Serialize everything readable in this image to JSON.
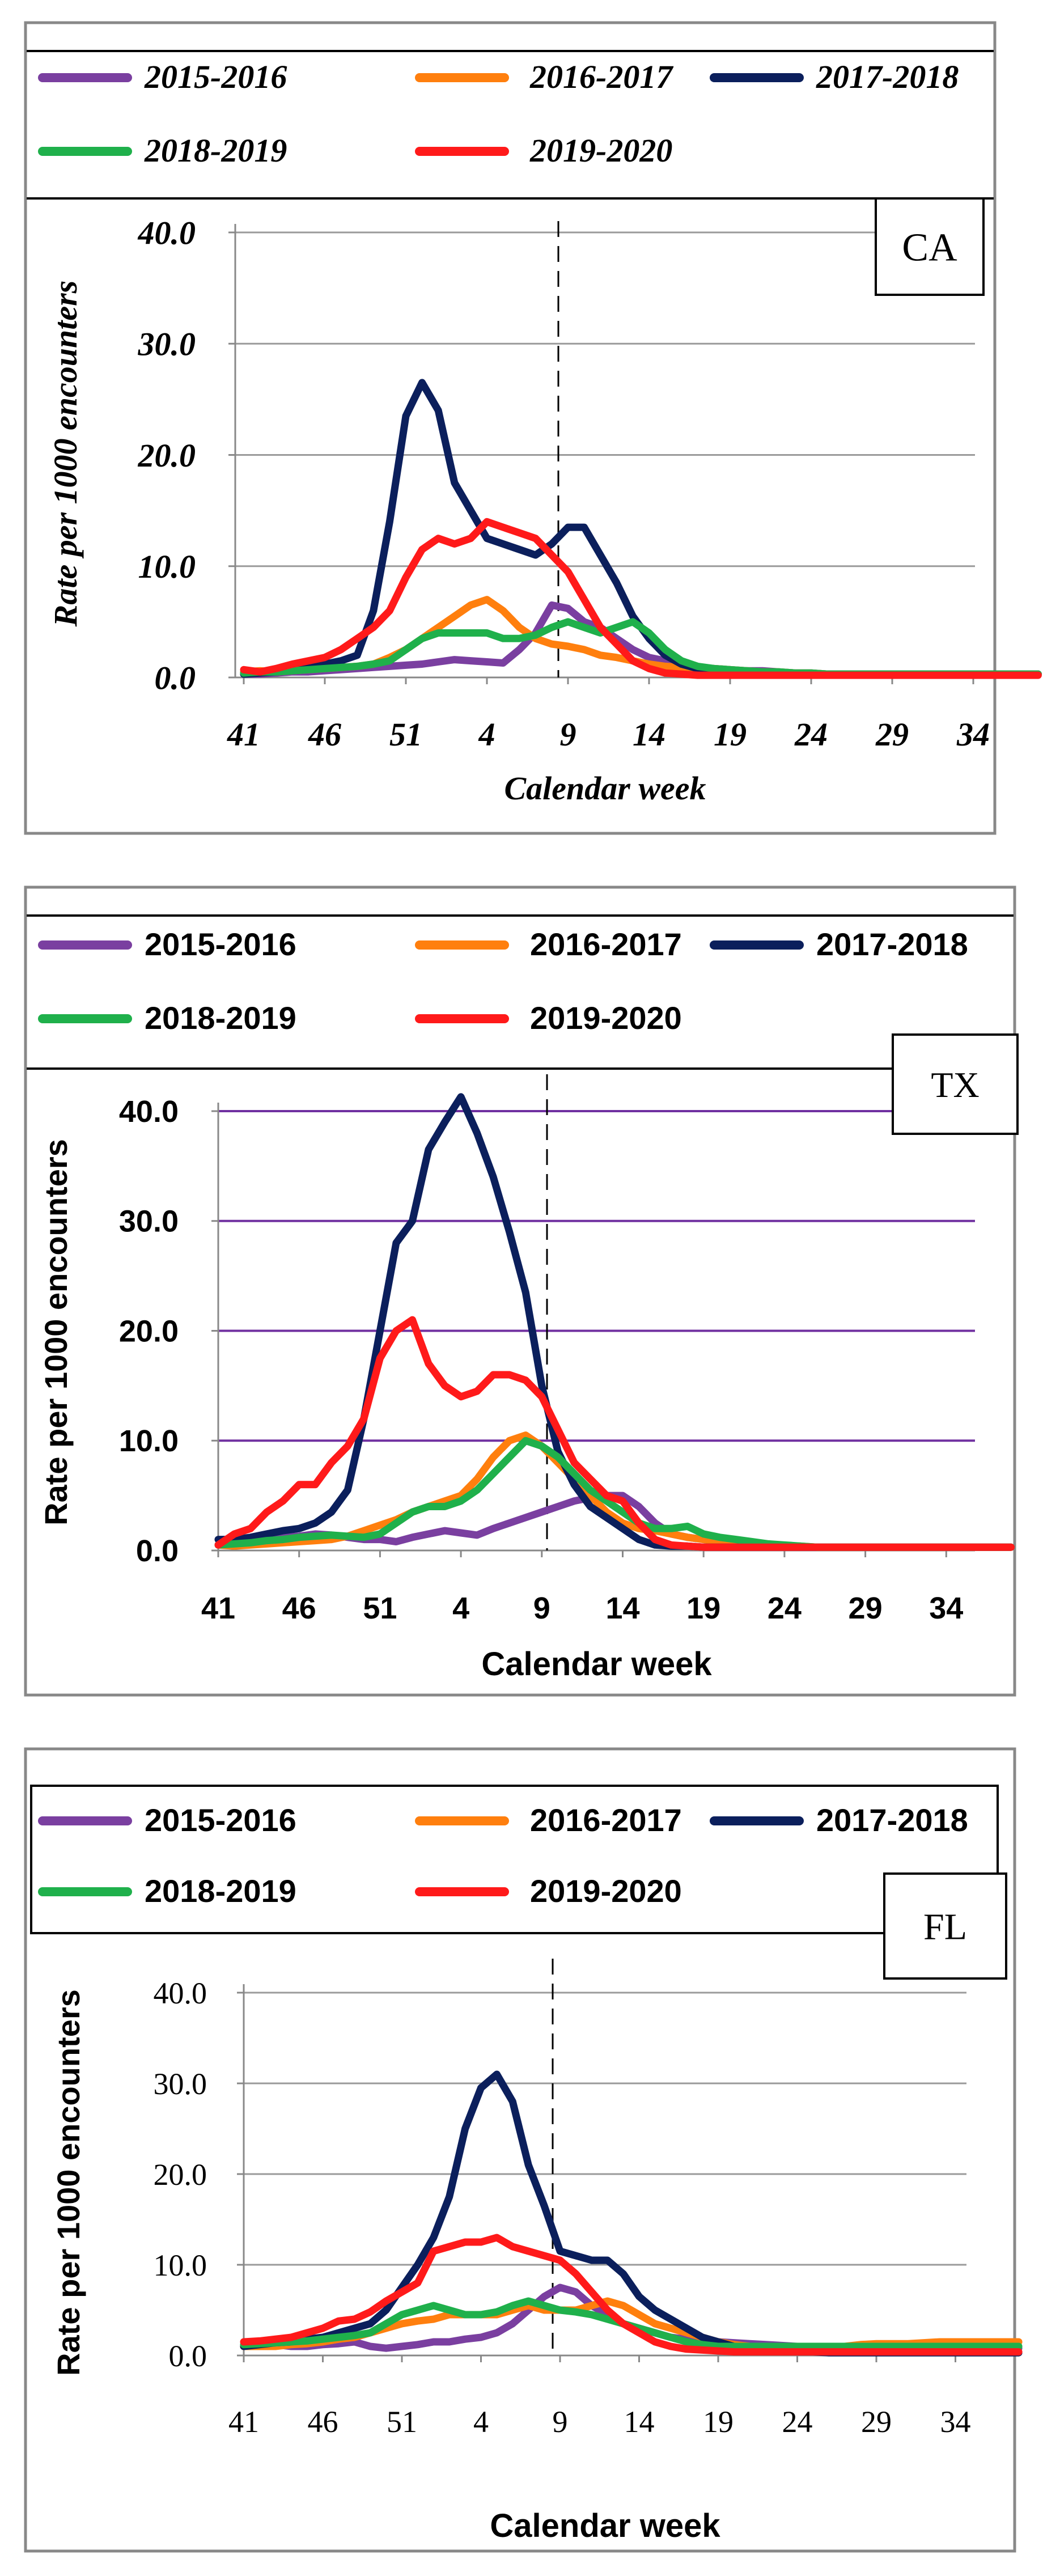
{
  "colors": {
    "2015-2016": "#7A3FA0",
    "2016-2017": "#FF7F0E",
    "2017-2018": "#0B1F5C",
    "2018-2019": "#1FB04B",
    "2019-2020": "#FF1A1A",
    "grid_tx": "#7030A0",
    "grid": "#9a9a9a"
  },
  "chart_data": [
    {
      "type": "line",
      "state": "CA",
      "xlabel": "Calendar week",
      "ylabel": "Rate per 1000 encounters",
      "x_tick_labels": [
        "41",
        "46",
        "51",
        "4",
        "9",
        "14",
        "19",
        "24",
        "29",
        "34"
      ],
      "y_tick_labels": [
        "0.0",
        "10.0",
        "20.0",
        "30.0",
        "40.0"
      ],
      "ylim": [
        0,
        40
      ],
      "legend": [
        "2015-2016",
        "2016-2017",
        "2017-2018",
        "2018-2019",
        "2019-2020"
      ],
      "reference_line_index": 22,
      "series": [
        {
          "name": "2015-2016",
          "values": [
            0.3,
            0.3,
            0.4,
            0.5,
            0.5,
            0.6,
            0.7,
            0.8,
            0.9,
            1.0,
            1.1,
            1.2,
            1.4,
            1.6,
            1.5,
            1.4,
            1.3,
            2.5,
            4.0,
            6.5,
            6.2,
            5.0,
            4.5,
            3.5,
            2.5,
            1.8,
            1.5,
            1.0,
            0.9,
            0.8,
            0.7,
            0.6,
            0.6,
            0.5,
            0.4,
            0.4,
            0.3,
            0.3,
            0.3,
            0.3,
            0.3,
            0.3,
            0.3,
            0.3,
            0.3,
            0.3,
            0.3,
            0.3,
            0.3,
            0.3
          ]
        },
        {
          "name": "2016-2017",
          "values": [
            0.5,
            0.6,
            0.5,
            0.6,
            0.7,
            0.8,
            0.9,
            1.0,
            1.2,
            1.8,
            2.5,
            3.5,
            4.5,
            5.5,
            6.5,
            7.0,
            6.0,
            4.5,
            3.5,
            3.0,
            2.8,
            2.5,
            2.0,
            1.8,
            1.5,
            1.2,
            1.0,
            0.9,
            0.8,
            0.8,
            0.7,
            0.6,
            0.5,
            0.5,
            0.4,
            0.4,
            0.3,
            0.3,
            0.3,
            0.3,
            0.3,
            0.3,
            0.3,
            0.3,
            0.3,
            0.3,
            0.3,
            0.3,
            0.3,
            0.3
          ]
        },
        {
          "name": "2017-2018",
          "values": [
            0.3,
            0.4,
            0.5,
            0.7,
            1.0,
            1.2,
            1.5,
            2.0,
            6.0,
            14.0,
            23.5,
            26.5,
            24.0,
            17.5,
            15.0,
            12.5,
            12.0,
            11.5,
            11.0,
            12.0,
            13.5,
            13.5,
            11.0,
            8.5,
            5.5,
            3.5,
            2.0,
            1.2,
            0.8,
            0.6,
            0.5,
            0.4,
            0.4,
            0.3,
            0.3,
            0.3,
            0.3,
            0.3,
            0.3,
            0.3,
            0.3,
            0.3,
            0.3,
            0.3,
            0.3,
            0.3,
            0.3,
            0.3,
            0.3,
            0.3
          ]
        },
        {
          "name": "2018-2019",
          "values": [
            0.4,
            0.5,
            0.5,
            0.6,
            0.7,
            0.8,
            0.9,
            1.0,
            1.2,
            1.5,
            2.5,
            3.5,
            4.0,
            4.0,
            4.0,
            4.0,
            3.5,
            3.5,
            3.8,
            4.5,
            5.0,
            4.5,
            4.0,
            4.5,
            5.0,
            4.0,
            2.5,
            1.5,
            1.0,
            0.8,
            0.7,
            0.6,
            0.5,
            0.5,
            0.4,
            0.4,
            0.3,
            0.3,
            0.3,
            0.3,
            0.3,
            0.3,
            0.3,
            0.3,
            0.3,
            0.3,
            0.3,
            0.3,
            0.3,
            0.3
          ]
        },
        {
          "name": "2019-2020",
          "values": [
            0.7,
            0.5,
            0.8,
            1.2,
            1.5,
            1.8,
            2.5,
            3.5,
            4.5,
            6.0,
            9.0,
            11.5,
            12.5,
            12.0,
            12.5,
            14.0,
            13.5,
            13.0,
            12.5,
            11.0,
            9.5,
            7.0,
            4.5,
            3.0,
            1.5,
            0.8,
            0.4,
            0.3,
            0.2,
            0.2,
            0.2,
            0.2,
            0.2,
            0.2,
            0.2,
            0.2,
            0.2,
            0.2,
            0.2,
            0.2,
            0.2,
            0.2,
            0.2,
            0.2,
            0.2,
            0.2,
            0.2,
            0.2,
            0.2,
            0.2
          ]
        }
      ]
    },
    {
      "type": "line",
      "state": "TX",
      "xlabel": "Calendar week",
      "ylabel": "Rate per 1000 encounters",
      "x_tick_labels": [
        "41",
        "46",
        "51",
        "4",
        "9",
        "14",
        "19",
        "24",
        "29",
        "34"
      ],
      "y_tick_labels": [
        "0.0",
        "10.0",
        "20.0",
        "30.0",
        "40.0"
      ],
      "ylim": [
        0,
        40
      ],
      "legend": [
        "2015-2016",
        "2016-2017",
        "2017-2018",
        "2018-2019",
        "2019-2020"
      ],
      "reference_line_index": 22,
      "series": [
        {
          "name": "2015-2016",
          "values": [
            0.5,
            0.6,
            0.8,
            1.0,
            1.2,
            1.3,
            1.5,
            1.4,
            1.2,
            1.0,
            1.0,
            0.8,
            1.2,
            1.5,
            1.8,
            1.6,
            1.4,
            2.0,
            2.5,
            3.0,
            3.5,
            4.0,
            4.5,
            4.8,
            5.0,
            5.0,
            4.0,
            2.5,
            1.5,
            1.2,
            1.0,
            0.8,
            0.7,
            0.6,
            0.5,
            0.4,
            0.3,
            0.3,
            0.3,
            0.3,
            0.3,
            0.3,
            0.3,
            0.3,
            0.3,
            0.3,
            0.3,
            0.3,
            0.3,
            0.3
          ]
        },
        {
          "name": "2016-2017",
          "values": [
            0.5,
            0.4,
            0.5,
            0.6,
            0.7,
            0.8,
            0.9,
            1.0,
            1.3,
            1.8,
            2.3,
            2.8,
            3.5,
            4.0,
            4.5,
            5.0,
            6.5,
            8.5,
            10.0,
            10.5,
            9.5,
            8.0,
            6.5,
            5.0,
            3.5,
            2.5,
            2.0,
            1.8,
            1.5,
            1.2,
            1.0,
            0.8,
            0.7,
            0.6,
            0.5,
            0.4,
            0.4,
            0.3,
            0.3,
            0.3,
            0.3,
            0.3,
            0.3,
            0.3,
            0.3,
            0.3,
            0.3,
            0.3,
            0.3,
            0.3
          ]
        },
        {
          "name": "2017-2018",
          "values": [
            1.0,
            1.0,
            1.2,
            1.5,
            1.8,
            2.0,
            2.5,
            3.5,
            5.5,
            12.0,
            20.0,
            28.0,
            30.0,
            36.5,
            39.0,
            41.3,
            38.0,
            34.0,
            29.0,
            23.5,
            15.0,
            9.0,
            6.0,
            4.0,
            3.0,
            2.0,
            1.0,
            0.5,
            0.4,
            0.4,
            0.3,
            0.3,
            0.3,
            0.3,
            0.3,
            0.3,
            0.3,
            0.3,
            0.3,
            0.3,
            0.3,
            0.3,
            0.3,
            0.3,
            0.3,
            0.3,
            0.3,
            0.3,
            0.3,
            0.3
          ]
        },
        {
          "name": "2018-2019",
          "values": [
            0.5,
            0.6,
            0.7,
            0.9,
            1.0,
            1.2,
            1.3,
            1.4,
            1.3,
            1.2,
            1.5,
            2.5,
            3.5,
            4.0,
            4.0,
            4.5,
            5.5,
            7.0,
            8.5,
            10.0,
            9.5,
            8.5,
            7.0,
            5.5,
            4.5,
            3.5,
            2.5,
            2.0,
            2.0,
            2.2,
            1.5,
            1.2,
            1.0,
            0.8,
            0.6,
            0.5,
            0.4,
            0.3,
            0.3,
            0.3,
            0.3,
            0.3,
            0.3,
            0.3,
            0.3,
            0.3,
            0.3,
            0.3,
            0.3,
            0.3
          ]
        },
        {
          "name": "2019-2020",
          "values": [
            0.5,
            1.5,
            2.0,
            3.5,
            4.5,
            6.0,
            6.0,
            8.0,
            9.5,
            12.0,
            17.5,
            20.0,
            21.0,
            17.0,
            15.0,
            14.0,
            14.5,
            16.0,
            16.0,
            15.5,
            14.0,
            11.0,
            8.0,
            6.5,
            5.0,
            4.5,
            2.5,
            1.0,
            0.5,
            0.4,
            0.3,
            0.3,
            0.3,
            0.3,
            0.3,
            0.3,
            0.3,
            0.3,
            0.3,
            0.3,
            0.3,
            0.3,
            0.3,
            0.3,
            0.3,
            0.3,
            0.3,
            0.3,
            0.3,
            0.3
          ]
        }
      ]
    },
    {
      "type": "line",
      "state": "FL",
      "xlabel": "Calendar week",
      "ylabel": "Rate per 1000 encounters",
      "x_tick_labels": [
        "41",
        "46",
        "51",
        "4",
        "9",
        "14",
        "19",
        "24",
        "29",
        "34"
      ],
      "y_tick_labels": [
        "0.0",
        "10.0",
        "20.0",
        "30.0",
        "40.0"
      ],
      "ylim": [
        0,
        40
      ],
      "legend": [
        "2015-2016",
        "2016-2017",
        "2017-2018",
        "2018-2019",
        "2019-2020"
      ],
      "reference_line_index": 22,
      "series": [
        {
          "name": "2015-2016",
          "values": [
            1.0,
            1.1,
            1.2,
            1.0,
            1.0,
            1.2,
            1.3,
            1.5,
            1.0,
            0.8,
            1.0,
            1.2,
            1.5,
            1.5,
            1.8,
            2.0,
            2.5,
            3.5,
            5.0,
            6.5,
            7.5,
            7.0,
            5.5,
            4.5,
            3.5,
            3.0,
            2.5,
            2.0,
            1.8,
            1.6,
            1.5,
            1.4,
            1.3,
            1.2,
            1.1,
            1.0,
            1.0,
            0.9,
            0.9,
            0.8,
            0.8,
            0.8,
            0.8,
            0.8,
            0.8,
            0.8,
            0.8,
            0.8,
            0.8,
            0.8
          ]
        },
        {
          "name": "2016-2017",
          "values": [
            1.0,
            1.0,
            1.0,
            1.2,
            1.3,
            1.5,
            1.8,
            2.0,
            2.5,
            3.0,
            3.5,
            3.8,
            4.0,
            4.5,
            4.5,
            4.5,
            4.5,
            5.0,
            5.5,
            5.0,
            5.0,
            5.0,
            5.5,
            6.0,
            5.5,
            4.5,
            3.5,
            3.0,
            2.5,
            2.0,
            1.5,
            1.2,
            1.0,
            1.0,
            1.0,
            1.0,
            1.0,
            1.0,
            1.0,
            1.2,
            1.3,
            1.3,
            1.3,
            1.4,
            1.5,
            1.5,
            1.5,
            1.5,
            1.5,
            1.5
          ]
        },
        {
          "name": "2017-2018",
          "values": [
            1.0,
            1.2,
            1.4,
            1.5,
            1.8,
            2.0,
            2.5,
            3.0,
            3.5,
            5.0,
            7.5,
            10.0,
            13.0,
            17.5,
            25.0,
            29.5,
            31.0,
            28.0,
            21.0,
            16.5,
            11.5,
            11.0,
            10.5,
            10.5,
            9.0,
            6.5,
            5.0,
            4.0,
            3.0,
            2.0,
            1.5,
            1.0,
            0.8,
            0.6,
            0.5,
            0.4,
            0.4,
            0.3,
            0.3,
            0.3,
            0.3,
            0.3,
            0.3,
            0.3,
            0.3,
            0.3,
            0.3,
            0.3,
            0.3,
            0.3
          ]
        },
        {
          "name": "2018-2019",
          "values": [
            1.2,
            1.3,
            1.4,
            1.5,
            1.6,
            1.8,
            2.0,
            2.2,
            2.5,
            3.5,
            4.5,
            5.0,
            5.5,
            5.0,
            4.5,
            4.5,
            4.8,
            5.5,
            6.0,
            5.5,
            5.0,
            4.8,
            4.5,
            4.0,
            3.5,
            3.0,
            2.5,
            2.0,
            1.5,
            1.2,
            1.0,
            1.0,
            1.0,
            1.0,
            1.0,
            1.0,
            1.0,
            1.0,
            1.0,
            1.0,
            1.0,
            1.0,
            1.0,
            1.0,
            1.0,
            1.0,
            1.0,
            1.0,
            1.0,
            1.0
          ]
        },
        {
          "name": "2019-2020",
          "values": [
            1.5,
            1.6,
            1.8,
            2.0,
            2.5,
            3.0,
            3.8,
            4.0,
            4.8,
            6.0,
            7.0,
            8.0,
            11.5,
            12.0,
            12.5,
            12.5,
            13.0,
            12.0,
            11.5,
            11.0,
            10.5,
            9.0,
            7.0,
            5.0,
            3.5,
            2.5,
            1.5,
            1.0,
            0.7,
            0.6,
            0.5,
            0.4,
            0.4,
            0.4,
            0.4,
            0.4,
            0.4,
            0.4,
            0.4,
            0.4,
            0.4,
            0.4,
            0.4,
            0.4,
            0.4,
            0.4,
            0.4,
            0.4,
            0.4,
            0.4
          ]
        }
      ]
    }
  ]
}
